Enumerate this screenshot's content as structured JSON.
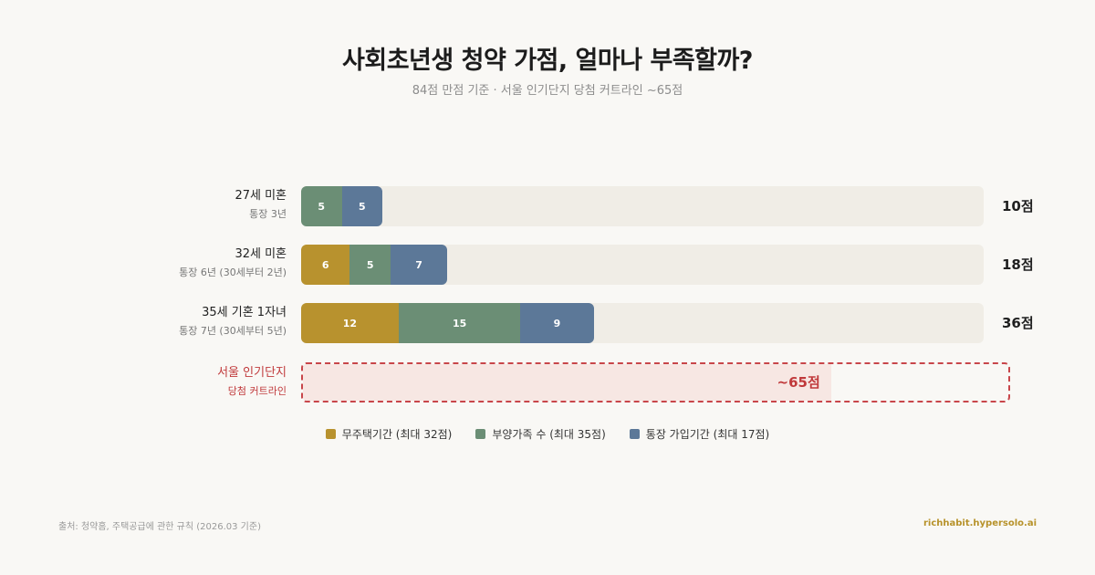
{
  "header": {
    "title": "사회초년생 청약 가점, 얼마나 부족할까?",
    "subtitle": "84점 만점 기준 · 서울 인기단지 당첨 커트라인 ~65점"
  },
  "colors": {
    "homeless": "#b8922e",
    "dependents": "#6b8e75",
    "account": "#5c7898",
    "cutoff": "#c8464a",
    "track": "#f0ede6"
  },
  "chart_data": {
    "type": "bar",
    "orientation": "horizontal",
    "stacked": true,
    "xlim": [
      0,
      84
    ],
    "categories": [
      {
        "label": "27세 미혼",
        "sublabel": "통장 3년",
        "total_label": "10점"
      },
      {
        "label": "32세 미혼",
        "sublabel": "통장 6년 (30세부터 2년)",
        "total_label": "18점"
      },
      {
        "label": "35세 기혼 1자녀",
        "sublabel": "통장 7년 (30세부터 5년)",
        "total_label": "36점"
      }
    ],
    "series": [
      {
        "name": "무주택기간 (최대 32점)",
        "color": "#b8922e",
        "values": [
          0,
          6,
          12
        ]
      },
      {
        "name": "부양가족 수 (최대 35점)",
        "color": "#6b8e75",
        "values": [
          5,
          5,
          15
        ]
      },
      {
        "name": "통장 가입기간 (최대 17점)",
        "color": "#5c7898",
        "values": [
          5,
          7,
          9
        ]
      }
    ],
    "cutoff": {
      "label": "서울 인기단지",
      "sublabel": "당첨 커트라인",
      "value": 65,
      "value_label": "~65점"
    }
  },
  "footer": {
    "source": "출처: 청약홈, 주택공급에 관한 규칙 (2026.03 기준)",
    "brand": "richhabit.hypersolo.ai"
  }
}
